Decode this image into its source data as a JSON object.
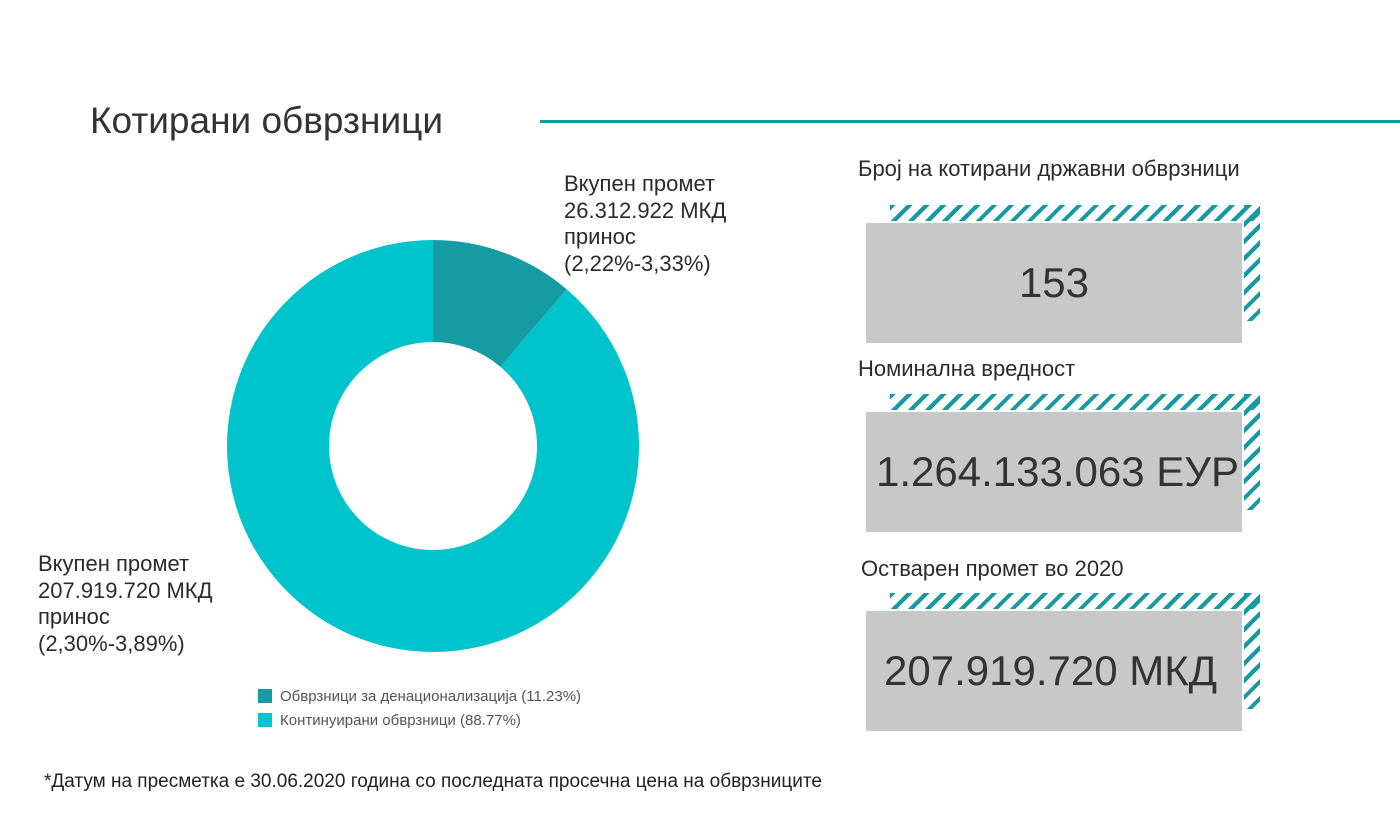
{
  "title": "Котирани обврзници",
  "colors": {
    "accent": "#159aa2",
    "slice_dark": "#149ca2",
    "slice_light": "#00c4cc",
    "card_bg": "#c8c8c8"
  },
  "chart_data": {
    "type": "pie",
    "donut": true,
    "slices": [
      {
        "name": "Обврзници за денационализација",
        "percent": 11.23,
        "color": "#149ca2"
      },
      {
        "name": "Континуирани обврзници",
        "percent": 88.77,
        "color": "#00c4cc"
      }
    ],
    "legend": [
      "Обврзници за денационализација (11.23%)",
      "Континуирани обврзници (88.77%)"
    ],
    "legend_position": "bottom",
    "annotations": [
      {
        "lines": [
          "Вкупен промет",
          "26.312.922 МКД",
          "принос",
          "(2,22%-3,33%)"
        ]
      },
      {
        "lines": [
          "Вкупен промет",
          "207.919.720 МКД",
          "принос",
          "(2,30%-3,89%)"
        ]
      }
    ]
  },
  "stats": [
    {
      "label": "Број на котирани државни обврзници",
      "value": "153"
    },
    {
      "label": "Номинална вредност",
      "value": "1.264.133.063 ЕУР"
    },
    {
      "label": "Остварен промет во 2020",
      "value": "207.919.720 МКД"
    }
  ],
  "footnote": "*Датум на пресметка е 30.06.2020 година со последната просечна цена на обврзниците"
}
